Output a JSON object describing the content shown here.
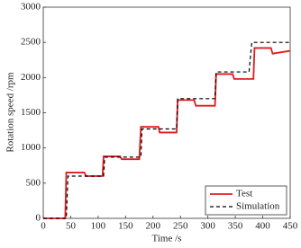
{
  "chart_data": {
    "type": "line",
    "x_label": "Time /s",
    "y_label": "Rotation speed /rpm",
    "x": [
      0,
      40,
      42,
      45,
      75,
      78,
      108,
      110,
      112,
      140,
      143,
      175,
      178,
      180,
      210,
      212,
      240,
      243,
      245,
      275,
      278,
      310,
      313,
      315,
      345,
      348,
      375,
      380,
      383,
      385,
      415,
      418,
      450
    ],
    "series": [
      {
        "name": "Test",
        "color": "#e31a1c",
        "dash": false,
        "values": [
          0,
          0,
          650,
          650,
          650,
          600,
          600,
          880,
          880,
          880,
          840,
          840,
          1300,
          1300,
          1300,
          1220,
          1220,
          1220,
          1680,
          1680,
          1600,
          1600,
          1600,
          2050,
          2050,
          1980,
          1980,
          1980,
          1980,
          2420,
          2420,
          2340,
          2380
        ]
      },
      {
        "name": "Simulation",
        "color": "#000000",
        "dash": true,
        "values": [
          0,
          0,
          0,
          600,
          600,
          600,
          600,
          600,
          870,
          870,
          870,
          870,
          870,
          1270,
          1270,
          1270,
          1270,
          1270,
          1700,
          1700,
          1700,
          1700,
          1700,
          2080,
          2080,
          2080,
          2080,
          2500,
          2500,
          2500,
          2500,
          2500,
          2500
        ]
      }
    ],
    "xlim": [
      0,
      450
    ],
    "xticks": [
      0,
      50,
      100,
      150,
      200,
      250,
      300,
      350,
      400,
      450
    ],
    "ylim": [
      0,
      3000
    ],
    "yticks": [
      0,
      500,
      1000,
      1500,
      2000,
      2500,
      3000
    ],
    "grid": false,
    "legend": "lower right"
  }
}
